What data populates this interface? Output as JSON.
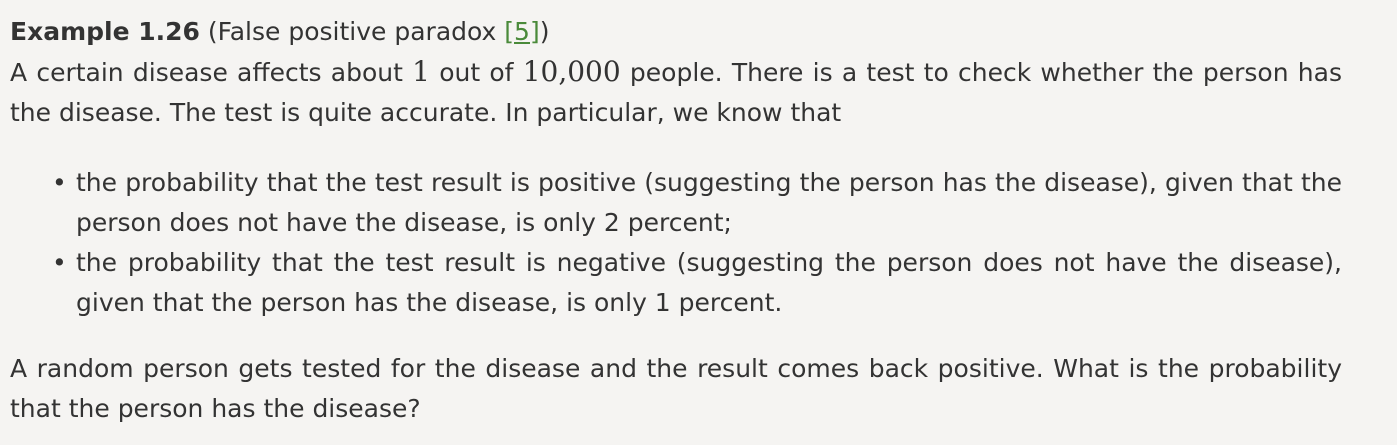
{
  "example": {
    "title": "Example 1.26",
    "subtitle_open": " (False positive paradox ",
    "citation": "[5]",
    "subtitle_close": ")"
  },
  "intro": {
    "part1": "A certain disease affects about ",
    "math1": "1",
    "part2": " out of ",
    "math2": "10,000",
    "part3": " people. There is a test to check whether the person has the disease. The test is quite accurate. In particular, we know that"
  },
  "conditions": [
    "the probability that the test result is positive (suggesting the person has the disease), given that the person does not have the disease, is only 2 percent;",
    "the probability that the test result is negative (suggesting the person does not have the disease), given that the person has the disease, is only 1 percent."
  ],
  "question": "A random person gets tested for the disease and the result comes back positive. What is the probability that the person has the disease?",
  "bullet_glyph": "•"
}
